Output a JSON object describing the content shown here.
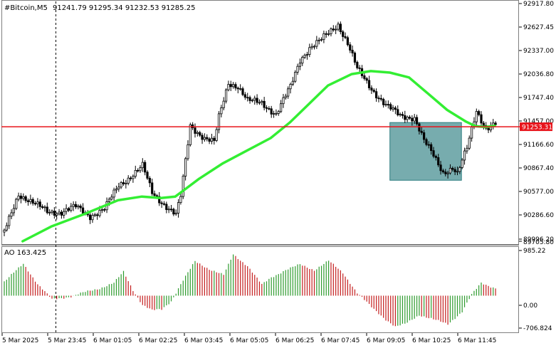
{
  "header": {
    "symbol_timeframe": "#Bitcoin,M5",
    "ohlc": "91241.79 91295.34 91232.53 91285.25"
  },
  "price_axis": {
    "labels": [
      "92917.80",
      "92627.45",
      "92337.00",
      "92036.80",
      "91747.40",
      "91457.00",
      "91166.60",
      "90867.40",
      "90577.00",
      "90286.60",
      "89996.20",
      "89705.80"
    ],
    "current_price_label": "91253.31"
  },
  "ao_panel": {
    "title": "AO 163.425",
    "axis_labels": [
      "985.22",
      "0.00",
      "-706.824"
    ]
  },
  "time_axis": {
    "labels": [
      "5 Mar 2025",
      "5 Mar 23:45",
      "6 Mar 01:05",
      "6 Mar 02:25",
      "6 Mar 03:45",
      "6 Mar 05:05",
      "6 Mar 06:25",
      "6 Mar 07:45",
      "6 Mar 09:05",
      "6 Mar 10:25",
      "6 Mar 11:45"
    ]
  },
  "colors": {
    "background": "#ffffff",
    "candle": "#000000",
    "moving_average": "#33ee33",
    "price_line": "#e8141b",
    "price_tag": "#e8141b",
    "box_fill": "#5f9ea0",
    "box_border": "#2e7d80",
    "ao_up": "#2e9b2e",
    "ao_down": "#c41e1e",
    "grid_text": "#000000",
    "separator": "#7f7f7f",
    "session_line": "#000000"
  },
  "chart_data": {
    "type": "candlestick",
    "title": "#Bitcoin,M5",
    "subtitle": "91241.79 91295.34 91232.53 91285.25",
    "x": [
      "5 Mar 2025",
      "5 Mar 23:45",
      "6 Mar 01:05",
      "6 Mar 02:25",
      "6 Mar 03:45",
      "6 Mar 05:05",
      "6 Mar 06:25",
      "6 Mar 07:45",
      "6 Mar 09:05",
      "6 Mar 10:25",
      "6 Mar 11:45"
    ],
    "ylim": [
      89705.8,
      92917.8
    ],
    "current_price": 91253.31,
    "series": [
      {
        "kind": "candles",
        "ohlc_anchors": [
          [
            0,
            89830
          ],
          [
            6,
            90350
          ],
          [
            12,
            90220
          ],
          [
            18,
            90110
          ],
          [
            24,
            90100
          ],
          [
            30,
            90170
          ],
          [
            36,
            90050
          ],
          [
            42,
            90140
          ],
          [
            48,
            90460
          ],
          [
            52,
            90560
          ],
          [
            58,
            90720
          ],
          [
            62,
            90360
          ],
          [
            66,
            90240
          ],
          [
            72,
            90060
          ],
          [
            74,
            90310
          ],
          [
            78,
            91270
          ],
          [
            84,
            91100
          ],
          [
            88,
            91040
          ],
          [
            90,
            91380
          ],
          [
            94,
            91850
          ],
          [
            98,
            91800
          ],
          [
            102,
            91600
          ],
          [
            108,
            91580
          ],
          [
            114,
            91420
          ],
          [
            120,
            91790
          ],
          [
            124,
            92160
          ],
          [
            128,
            92320
          ],
          [
            132,
            92400
          ],
          [
            136,
            92520
          ],
          [
            140,
            92640
          ],
          [
            144,
            92380
          ],
          [
            148,
            92030
          ],
          [
            154,
            91770
          ],
          [
            160,
            91540
          ],
          [
            166,
            91400
          ],
          [
            172,
            91380
          ],
          [
            176,
            91060
          ],
          [
            180,
            90860
          ],
          [
            184,
            90640
          ],
          [
            188,
            90700
          ],
          [
            190,
            90610
          ],
          [
            194,
            90960
          ],
          [
            198,
            91480
          ],
          [
            202,
            91230
          ],
          [
            206,
            91285
          ]
        ]
      },
      {
        "kind": "line",
        "points": [
          [
            8,
            89706
          ],
          [
            20,
            89905
          ],
          [
            34,
            90075
          ],
          [
            48,
            90260
          ],
          [
            58,
            90310
          ],
          [
            66,
            90290
          ],
          [
            72,
            90310
          ],
          [
            82,
            90550
          ],
          [
            92,
            90760
          ],
          [
            102,
            90930
          ],
          [
            112,
            91100
          ],
          [
            120,
            91310
          ],
          [
            128,
            91560
          ],
          [
            136,
            91810
          ],
          [
            146,
            91965
          ],
          [
            154,
            92005
          ],
          [
            162,
            91985
          ],
          [
            170,
            91920
          ],
          [
            178,
            91700
          ],
          [
            186,
            91480
          ],
          [
            194,
            91320
          ],
          [
            198,
            91260
          ],
          [
            202,
            91250
          ],
          [
            206,
            91265
          ]
        ]
      },
      {
        "kind": "ao_histogram",
        "anchors": [
          [
            0,
            300
          ],
          [
            8,
            700
          ],
          [
            14,
            250
          ],
          [
            20,
            -80
          ],
          [
            28,
            -20
          ],
          [
            34,
            80
          ],
          [
            40,
            160
          ],
          [
            46,
            280
          ],
          [
            50,
            520
          ],
          [
            54,
            120
          ],
          [
            58,
            -200
          ],
          [
            62,
            -320
          ],
          [
            66,
            -300
          ],
          [
            70,
            -120
          ],
          [
            74,
            250
          ],
          [
            80,
            750
          ],
          [
            86,
            580
          ],
          [
            92,
            450
          ],
          [
            96,
            900
          ],
          [
            102,
            650
          ],
          [
            108,
            240
          ],
          [
            112,
            400
          ],
          [
            118,
            560
          ],
          [
            124,
            680
          ],
          [
            130,
            560
          ],
          [
            136,
            760
          ],
          [
            142,
            500
          ],
          [
            148,
            60
          ],
          [
            154,
            -250
          ],
          [
            160,
            -520
          ],
          [
            164,
            -680
          ],
          [
            168,
            -620
          ],
          [
            174,
            -420
          ],
          [
            180,
            -520
          ],
          [
            186,
            -620
          ],
          [
            192,
            -350
          ],
          [
            196,
            20
          ],
          [
            200,
            280
          ],
          [
            204,
            200
          ],
          [
            206,
            163
          ]
        ]
      }
    ],
    "shaded_zone": {
      "x_start": 162,
      "x_end": 192,
      "y_low": 90530,
      "y_high": 91310
    },
    "ao_ylim": [
      -706.824,
      985.22
    ]
  }
}
